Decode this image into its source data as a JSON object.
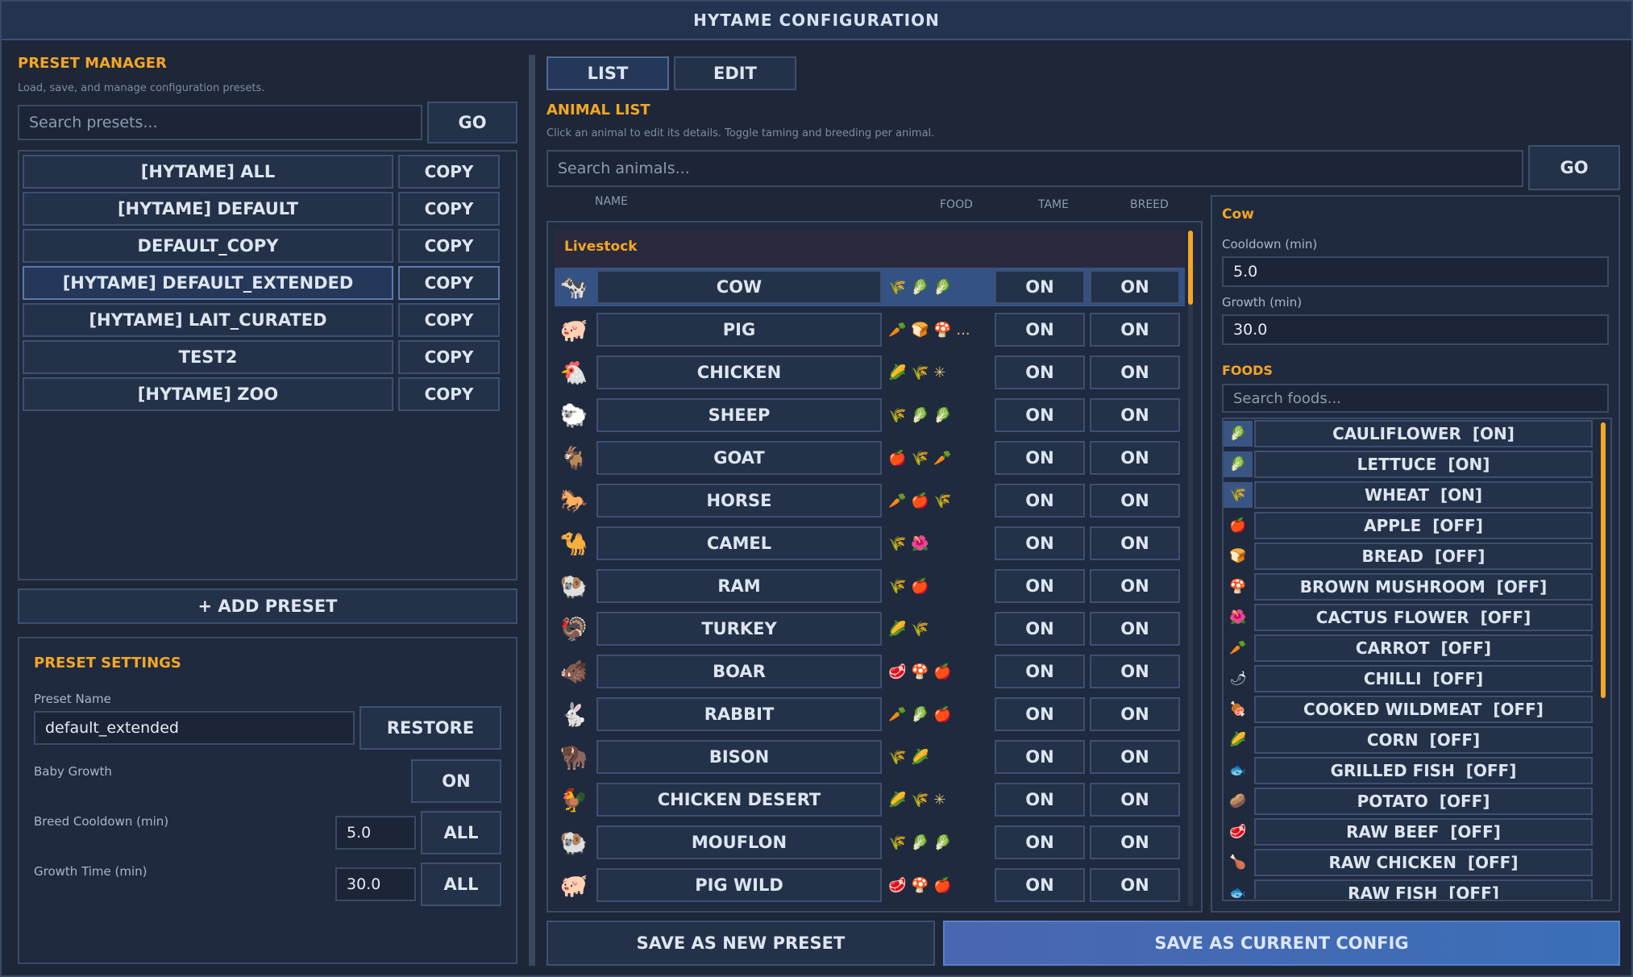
{
  "window": {
    "title": "HYTAME CONFIGURATION"
  },
  "preset_manager": {
    "title": "PRESET MANAGER",
    "subtitle": "Load, save, and manage configuration presets.",
    "search_placeholder": "Search presets...",
    "go_label": "GO",
    "presets": [
      {
        "name": "[HYTAME] ALL",
        "copy": "COPY"
      },
      {
        "name": "[HYTAME] DEFAULT",
        "copy": "COPY"
      },
      {
        "name": "DEFAULT_COPY",
        "copy": "COPY"
      },
      {
        "name": "[HYTAME] DEFAULT_EXTENDED",
        "copy": "COPY"
      },
      {
        "name": "[HYTAME] LAIT_CURATED",
        "copy": "COPY"
      },
      {
        "name": "TEST2",
        "copy": "COPY"
      },
      {
        "name": "[HYTAME] ZOO",
        "copy": "COPY"
      }
    ],
    "add_preset_label": "+ ADD PRESET"
  },
  "preset_settings": {
    "title": "PRESET SETTINGS",
    "name_label": "Preset Name",
    "name_value": "default_extended",
    "restore_label": "RESTORE",
    "baby_growth_label": "Baby Growth",
    "baby_growth_value": "ON",
    "breed_cooldown_label": "Breed Cooldown (min)",
    "breed_cooldown_value": "5.0",
    "growth_time_label": "Growth Time (min)",
    "growth_time_value": "30.0",
    "all_label": "ALL"
  },
  "tabs": [
    {
      "label": "LIST"
    },
    {
      "label": "EDIT"
    }
  ],
  "animal_list": {
    "title": "ANIMAL LIST",
    "subtitle": "Click an animal to edit its details. Toggle taming and breeding per animal.",
    "search_placeholder": "Search animals...",
    "go_label": "GO",
    "columns": {
      "name": "NAME",
      "food": "FOOD",
      "tame": "TAME",
      "breed": "BREED"
    },
    "group": "Livestock",
    "animals": [
      {
        "name": "COW",
        "icon": "🐄",
        "food": "🌾 🥬 🥬",
        "tame": "ON",
        "breed": "ON"
      },
      {
        "name": "PIG",
        "icon": "🐖",
        "food": "🥕 🍞 🍄 ...",
        "tame": "ON",
        "breed": "ON"
      },
      {
        "name": "CHICKEN",
        "icon": "🐔",
        "food": "🌽 🌾 ✳",
        "tame": "ON",
        "breed": "ON"
      },
      {
        "name": "SHEEP",
        "icon": "🐑",
        "food": "🌾 🥬 🥬",
        "tame": "ON",
        "breed": "ON"
      },
      {
        "name": "GOAT",
        "icon": "🐐",
        "food": "🍎 🌾 🥕",
        "tame": "ON",
        "breed": "ON"
      },
      {
        "name": "HORSE",
        "icon": "🐎",
        "food": "🥕 🍎 🌾",
        "tame": "ON",
        "breed": "ON"
      },
      {
        "name": "CAMEL",
        "icon": "🐪",
        "food": "🌾 🌺",
        "tame": "ON",
        "breed": "ON"
      },
      {
        "name": "RAM",
        "icon": "🐏",
        "food": "🌾 🍎",
        "tame": "ON",
        "breed": "ON"
      },
      {
        "name": "TURKEY",
        "icon": "🦃",
        "food": "🌽 🌾",
        "tame": "ON",
        "breed": "ON"
      },
      {
        "name": "BOAR",
        "icon": "🐗",
        "food": "🥩 🍄 🍎",
        "tame": "ON",
        "breed": "ON"
      },
      {
        "name": "RABBIT",
        "icon": "🐇",
        "food": "🥕 🥬 🍎",
        "tame": "ON",
        "breed": "ON"
      },
      {
        "name": "BISON",
        "icon": "🦬",
        "food": "🌾 🌽",
        "tame": "ON",
        "breed": "ON"
      },
      {
        "name": "CHICKEN DESERT",
        "icon": "🐓",
        "food": "🌽 🌾 ✳",
        "tame": "ON",
        "breed": "ON"
      },
      {
        "name": "MOUFLON",
        "icon": "🐏",
        "food": "🌾 🥬 🥬",
        "tame": "ON",
        "breed": "ON"
      },
      {
        "name": "PIG WILD",
        "icon": "🐖",
        "food": "🥩 🍄 🍎",
        "tame": "ON",
        "breed": "ON"
      }
    ]
  },
  "detail": {
    "animal": "Cow",
    "cooldown_label": "Cooldown (min)",
    "cooldown_value": "5.0",
    "growth_label": "Growth (min)",
    "growth_value": "30.0",
    "foods_title": "FOODS",
    "foods_search_placeholder": "Search foods...",
    "foods": [
      {
        "label": "CAULIFLOWER  [ON]",
        "icon": "🥬",
        "on": true
      },
      {
        "label": "LETTUCE  [ON]",
        "icon": "🥬",
        "on": true
      },
      {
        "label": "WHEAT  [ON]",
        "icon": "🌾",
        "on": true
      },
      {
        "label": "APPLE  [OFF]",
        "icon": "🍎",
        "on": false
      },
      {
        "label": "BREAD  [OFF]",
        "icon": "🍞",
        "on": false
      },
      {
        "label": "BROWN MUSHROOM  [OFF]",
        "icon": "🍄",
        "on": false
      },
      {
        "label": "CACTUS FLOWER  [OFF]",
        "icon": "🌺",
        "on": false
      },
      {
        "label": "CARROT  [OFF]",
        "icon": "🥕",
        "on": false
      },
      {
        "label": "CHILLI  [OFF]",
        "icon": "🌶",
        "on": false
      },
      {
        "label": "COOKED WILDMEAT  [OFF]",
        "icon": "🍖",
        "on": false
      },
      {
        "label": "CORN  [OFF]",
        "icon": "🌽",
        "on": false
      },
      {
        "label": "GRILLED FISH  [OFF]",
        "icon": "🐟",
        "on": false
      },
      {
        "label": "POTATO  [OFF]",
        "icon": "🥔",
        "on": false
      },
      {
        "label": "RAW BEEF  [OFF]",
        "icon": "🥩",
        "on": false
      },
      {
        "label": "RAW CHICKEN  [OFF]",
        "icon": "🍗",
        "on": false
      },
      {
        "label": "RAW FISH  [OFF]",
        "icon": "🐟",
        "on": false
      }
    ]
  },
  "footer": {
    "save_new_label": "SAVE AS NEW PRESET",
    "save_current_label": "SAVE AS CURRENT CONFIG"
  }
}
